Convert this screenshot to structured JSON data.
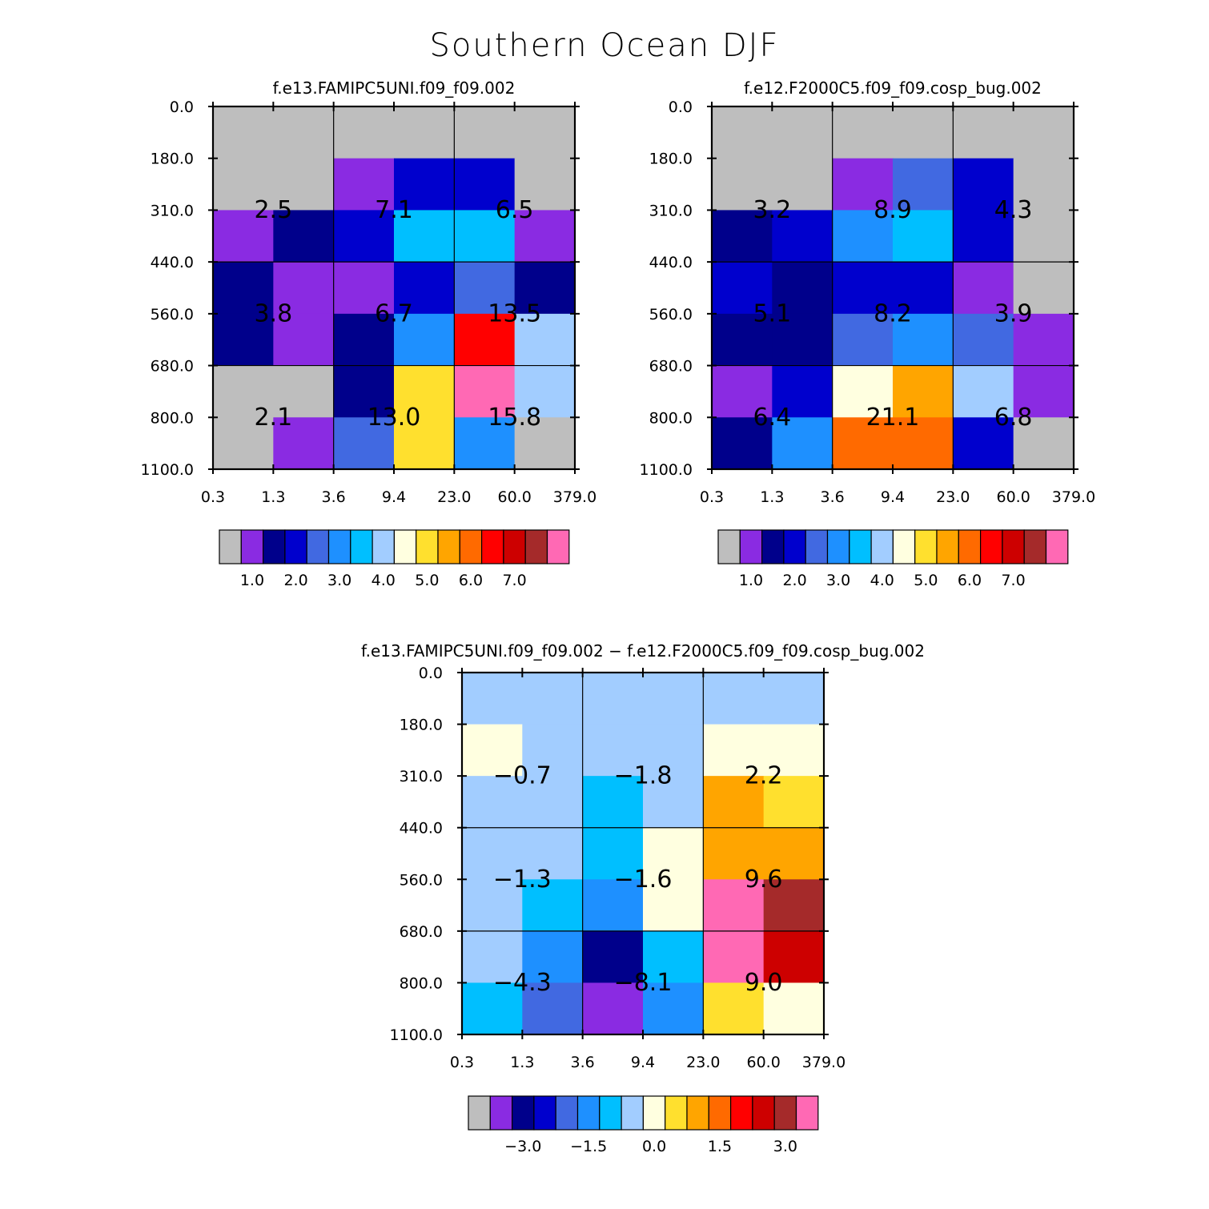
{
  "title": "Southern Ocean DJF",
  "palette": [
    "#bebebe",
    "#8a2be2",
    "#00008b",
    "#0000cd",
    "#4169e1",
    "#1e90ff",
    "#00bfff",
    "#a2cdff",
    "#ffffe0",
    "#ffe02e",
    "#ffa500",
    "#ff6a00",
    "#ff0000",
    "#cd0000",
    "#a52a2a",
    "#ff69b4"
  ],
  "chart_data": [
    {
      "type": "heatmap",
      "id": "panel1",
      "title": "f.e13.FAMIPC5UNI.f09_f09.002",
      "x_ticks": [
        "0.3",
        "1.3",
        "3.6",
        "9.4",
        "23.0",
        "60.0",
        "379.0"
      ],
      "y_ticks": [
        "0.0",
        "180.0",
        "310.0",
        "440.0",
        "560.0",
        "680.0",
        "800.0",
        "1100.0"
      ],
      "cell_color_index": [
        [
          0,
          0,
          0,
          0,
          0,
          0
        ],
        [
          0,
          0,
          1,
          3,
          3,
          0
        ],
        [
          1,
          2,
          3,
          6,
          6,
          1
        ],
        [
          2,
          1,
          1,
          3,
          4,
          2
        ],
        [
          2,
          1,
          2,
          5,
          12,
          7
        ],
        [
          0,
          0,
          2,
          9,
          15,
          7
        ],
        [
          0,
          1,
          4,
          9,
          5,
          0
        ]
      ],
      "block_values": [
        [
          "2.5",
          "7.1",
          "6.5"
        ],
        [
          "3.8",
          "6.7",
          "13.5"
        ],
        [
          "2.1",
          "13.0",
          "15.8"
        ]
      ],
      "colorbar": {
        "labels": [
          "1.0",
          "2.0",
          "3.0",
          "4.0",
          "5.0",
          "6.0",
          "7.0"
        ]
      }
    },
    {
      "type": "heatmap",
      "id": "panel2",
      "title": "f.e12.F2000C5.f09_f09.cosp_bug.002",
      "x_ticks": [
        "0.3",
        "1.3",
        "3.6",
        "9.4",
        "23.0",
        "60.0",
        "379.0"
      ],
      "y_ticks": [
        "0.0",
        "180.0",
        "310.0",
        "440.0",
        "560.0",
        "680.0",
        "800.0",
        "1100.0"
      ],
      "cell_color_index": [
        [
          0,
          0,
          0,
          0,
          0,
          0
        ],
        [
          0,
          0,
          1,
          4,
          3,
          0
        ],
        [
          2,
          3,
          5,
          6,
          3,
          0
        ],
        [
          3,
          2,
          3,
          3,
          1,
          0
        ],
        [
          2,
          2,
          4,
          5,
          4,
          1
        ],
        [
          1,
          3,
          8,
          10,
          7,
          1
        ],
        [
          2,
          5,
          11,
          11,
          3,
          0
        ]
      ],
      "block_values": [
        [
          "3.2",
          "8.9",
          "4.3"
        ],
        [
          "5.1",
          "8.2",
          "3.9"
        ],
        [
          "6.4",
          "21.1",
          "6.8"
        ]
      ],
      "colorbar": {
        "labels": [
          "1.0",
          "2.0",
          "3.0",
          "4.0",
          "5.0",
          "6.0",
          "7.0"
        ]
      }
    },
    {
      "type": "heatmap",
      "id": "panel3",
      "title": "f.e13.FAMIPC5UNI.f09_f09.002 − f.e12.F2000C5.f09_f09.cosp_bug.002",
      "x_ticks": [
        "0.3",
        "1.3",
        "3.6",
        "9.4",
        "23.0",
        "60.0",
        "379.0"
      ],
      "y_ticks": [
        "0.0",
        "180.0",
        "310.0",
        "440.0",
        "560.0",
        "680.0",
        "800.0",
        "1100.0"
      ],
      "cell_color_index": [
        [
          7,
          7,
          7,
          7,
          7,
          7
        ],
        [
          8,
          7,
          7,
          7,
          8,
          8
        ],
        [
          7,
          7,
          6,
          7,
          10,
          9
        ],
        [
          7,
          7,
          6,
          8,
          10,
          10
        ],
        [
          7,
          6,
          5,
          8,
          15,
          14
        ],
        [
          7,
          5,
          2,
          6,
          15,
          13
        ],
        [
          6,
          4,
          1,
          5,
          9,
          8
        ]
      ],
      "block_values": [
        [
          "−0.7",
          "−1.8",
          "2.2"
        ],
        [
          "−1.3",
          "−1.6",
          "9.6"
        ],
        [
          "−4.3",
          "−8.1",
          "9.0"
        ]
      ],
      "colorbar": {
        "labels": [
          "−3.0",
          "−1.5",
          "0.0",
          "1.5",
          "3.0"
        ]
      }
    }
  ]
}
